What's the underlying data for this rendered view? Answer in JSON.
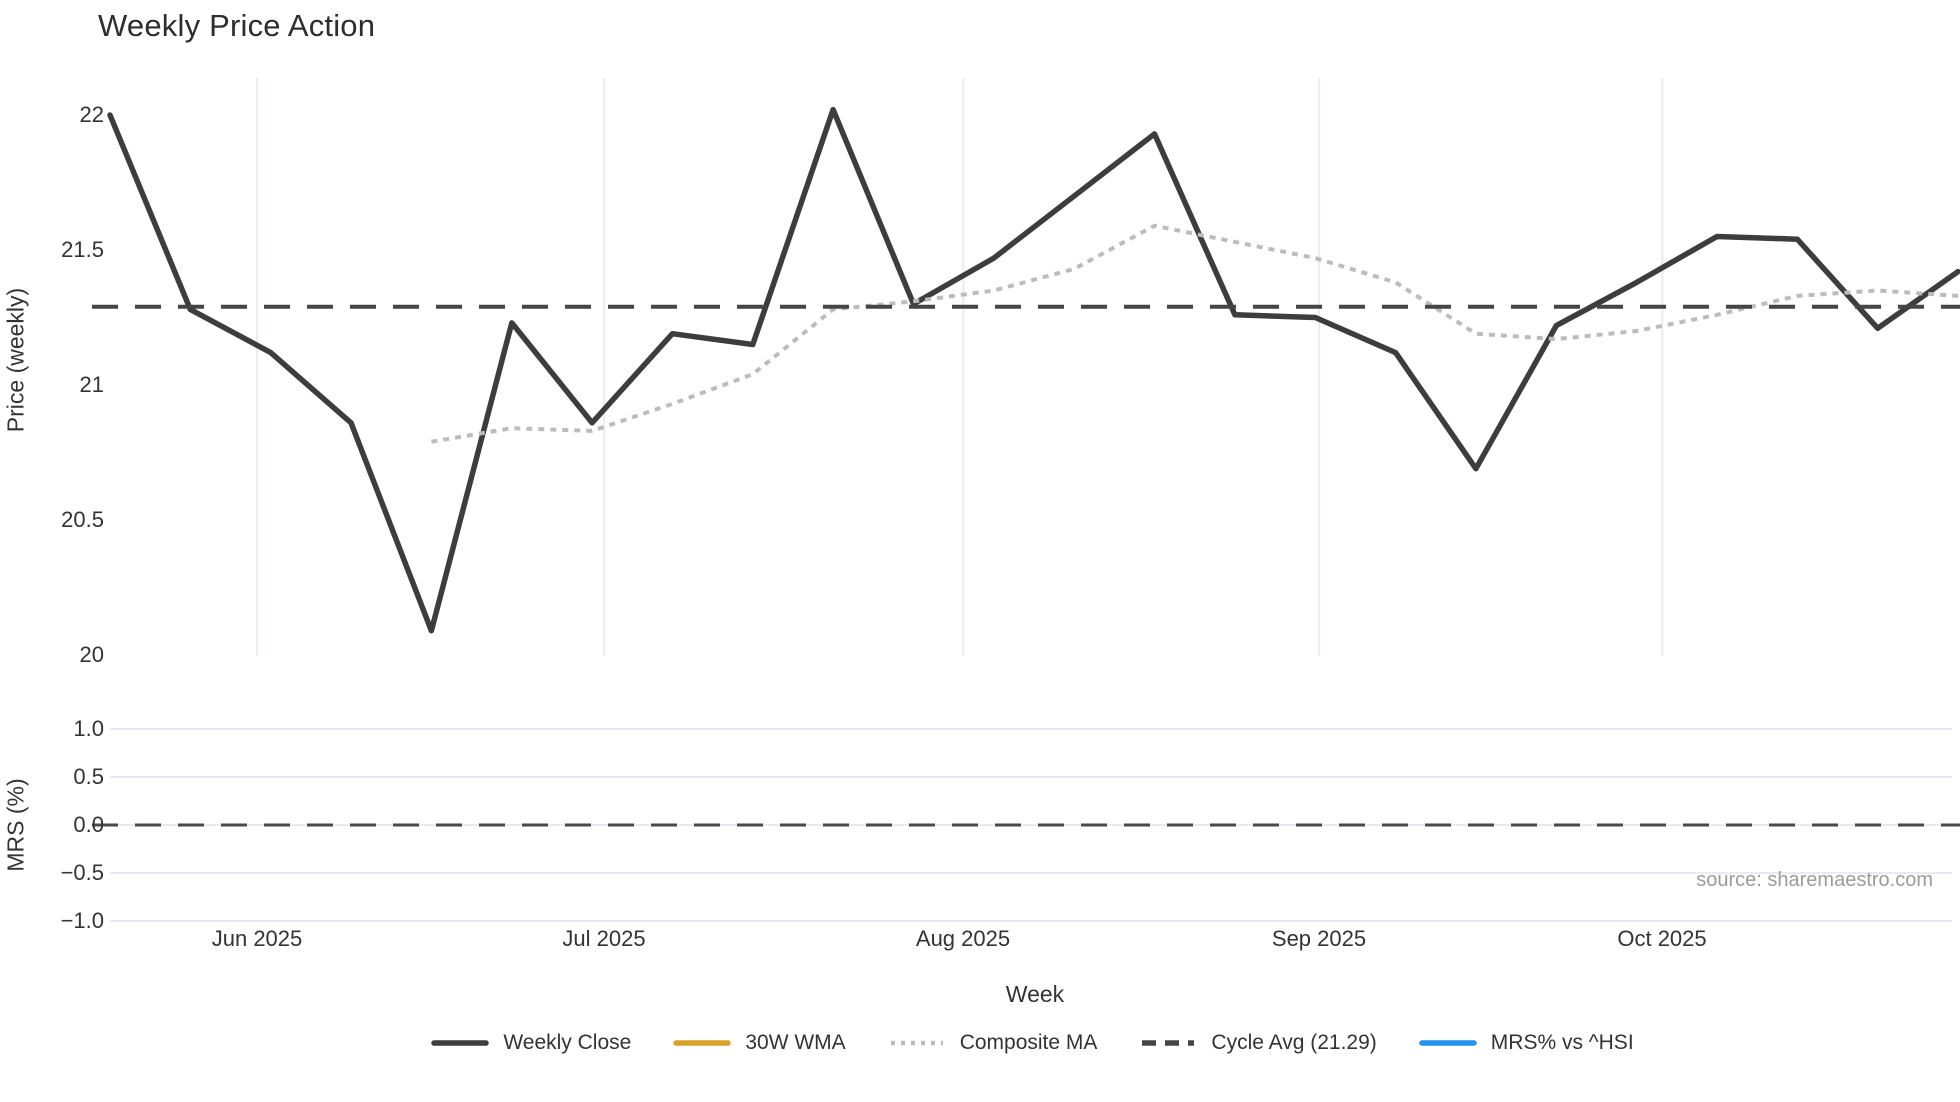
{
  "title": "Weekly Price Action",
  "source_note": "source: sharemaestro.com",
  "axes": {
    "price_axis_label": "Price (weekly)",
    "mrs_axis_label": "MRS (%)",
    "x_axis_label": "Week",
    "price_ticks": [
      "22",
      "21.5",
      "21",
      "20.5",
      "20"
    ],
    "mrs_ticks": [
      "1.0",
      "0.5",
      "0.0",
      "−0.5",
      "−1.0"
    ],
    "month_ticks": [
      "Jun 2025",
      "Jul 2025",
      "Aug 2025",
      "Sep 2025",
      "Oct 2025"
    ]
  },
  "legend": {
    "items": [
      {
        "label": "Weekly Close",
        "color": "#3d3d3d",
        "style": "solid"
      },
      {
        "label": "30W WMA",
        "color": "#d9a32b",
        "style": "solid"
      },
      {
        "label": "Composite MA",
        "color": "#bcbcbc",
        "style": "dotted"
      },
      {
        "label": "Cycle Avg (21.29)",
        "color": "#454545",
        "style": "dashed"
      },
      {
        "label": "MRS% vs ^HSI",
        "color": "#2592f2",
        "style": "solid"
      }
    ]
  },
  "chart_data": {
    "type": "line",
    "title": "Weekly Price Action",
    "xlabel": "Week",
    "legend_position": "bottom-center",
    "panels": [
      {
        "name": "price",
        "ylabel": "Price (weekly)",
        "ylim": [
          19.93,
          22.12
        ],
        "yticks": [
          22,
          21.5,
          21,
          20.5,
          20
        ],
        "grid": "vertical-month-lines"
      },
      {
        "name": "mrs",
        "ylabel": "MRS (%)",
        "ylim": [
          -1.15,
          1.15
        ],
        "yticks": [
          1.0,
          0.5,
          0.0,
          -0.5,
          -1.0
        ],
        "grid": "horizontal-lines"
      }
    ],
    "x_axis": {
      "unit": "week-index",
      "week_count": 24,
      "month_ticks": [
        {
          "label": "Jun 2025",
          "week_pos": 1.83
        },
        {
          "label": "Jul 2025",
          "week_pos": 6.15
        },
        {
          "label": "Aug 2025",
          "week_pos": 10.62
        },
        {
          "label": "Sep 2025",
          "week_pos": 15.05
        },
        {
          "label": "Oct 2025",
          "week_pos": 19.32
        }
      ]
    },
    "series": [
      {
        "name": "Weekly Close",
        "panel": "price",
        "type": "line",
        "style": "solid",
        "color": "#3d3d3d",
        "width": 5.5,
        "start_index": 0,
        "values": [
          22.0,
          21.28,
          21.12,
          20.86,
          20.09,
          21.23,
          20.86,
          21.19,
          21.15,
          22.02,
          21.3,
          21.47,
          21.7,
          21.93,
          21.26,
          21.25,
          21.12,
          20.69,
          21.22,
          21.38,
          21.55,
          21.54,
          21.21,
          21.42
        ]
      },
      {
        "name": "Composite MA",
        "panel": "price",
        "type": "line",
        "style": "dotted",
        "color": "#bcbcbc",
        "width": 4,
        "start_index": 4,
        "values": [
          20.79,
          20.84,
          20.83,
          20.93,
          21.04,
          21.28,
          21.31,
          21.35,
          21.43,
          21.59,
          21.53,
          21.47,
          21.38,
          21.19,
          21.17,
          21.2,
          21.26,
          21.33,
          21.35,
          21.33
        ]
      },
      {
        "name": "30W WMA",
        "panel": "price",
        "type": "line",
        "style": "solid",
        "color": "#d9a32b",
        "width": 5,
        "start_index": 0,
        "values": [],
        "note": "in legend only, no points drawn in visible range"
      },
      {
        "name": "Cycle Avg (21.29)",
        "panel": "price",
        "type": "hline",
        "style": "dashed",
        "color": "#454545",
        "width": 4,
        "value": 21.29
      },
      {
        "name": "MRS% vs ^HSI",
        "panel": "mrs",
        "type": "line",
        "style": "solid",
        "color": "#2592f2",
        "width": 5,
        "start_index": 0,
        "values": [],
        "note": "in legend only, no points drawn in visible range"
      },
      {
        "name": "MRS zero reference",
        "panel": "mrs",
        "type": "hline",
        "style": "dashed",
        "color": "#4a4a4a",
        "width": 3,
        "value": 0.0
      }
    ]
  }
}
